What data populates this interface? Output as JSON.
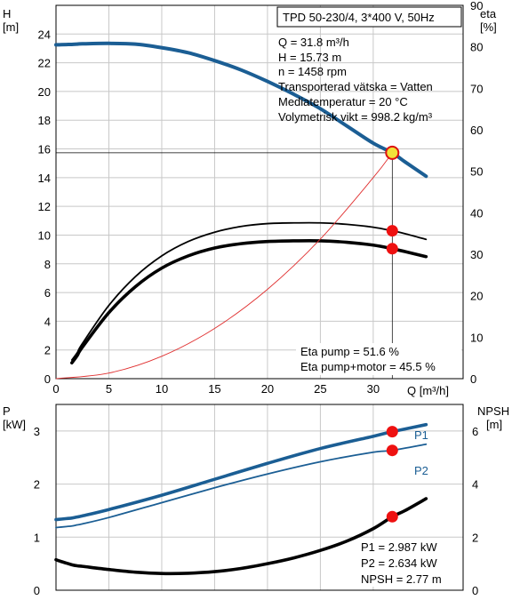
{
  "chart_data": [
    {
      "type": "line",
      "title": "TPD 50-230/4, 3*400 V, 50Hz",
      "xlabel": "Q [m³/h]",
      "ylabel_left": [
        "H",
        "[m]"
      ],
      "ylabel_right": [
        "eta",
        "[%]"
      ],
      "xlim": [
        0,
        38.5
      ],
      "ylim_left": [
        0,
        26
      ],
      "ylim_right": [
        0,
        90
      ],
      "x_ticks": [
        "0",
        "5",
        "10",
        "15",
        "20",
        "25",
        "30"
      ],
      "y_ticks_left": [
        "0",
        "2",
        "4",
        "6",
        "8",
        "10",
        "12",
        "14",
        "16",
        "18",
        "20",
        "22",
        "24"
      ],
      "y_ticks_right": [
        "0",
        "10",
        "20",
        "30",
        "40",
        "50",
        "60",
        "70",
        "80",
        "90"
      ],
      "grid": true,
      "info_lines": [
        "Q = 31.8 m³/h",
        "H = 15.73 m",
        "n = 1458 rpm",
        "Transporterad vätska = Vatten",
        "Mediatemperatur = 20 °C",
        "Volymetrisk vikt = 998.2 kg/m³"
      ],
      "eta_labels": [
        "Eta pump = 51.6 %",
        "Eta pump+motor = 45.5 %"
      ],
      "colors": {
        "head": "#1b5e94",
        "eta": "#000000",
        "system": "#e03030",
        "marker": "#ee1111",
        "op_marker": "#f2e23a"
      },
      "series": [
        {
          "axis": "left",
          "color": "head",
          "thick": true,
          "x": [
            0,
            0.5,
            1,
            1.5,
            2,
            2.5,
            5,
            7.5,
            10,
            12.5,
            15,
            17.5,
            20,
            22.5,
            25,
            27.5,
            30,
            31.8,
            33,
            35
          ],
          "y": [
            23.25,
            23.26,
            23.27,
            23.28,
            23.3,
            23.32,
            23.35,
            23.3,
            23.05,
            22.7,
            22.15,
            21.5,
            20.7,
            19.8,
            18.8,
            17.6,
            16.4,
            15.73,
            15.1,
            14.1
          ]
        },
        {
          "axis": "left",
          "color": "eta",
          "thick": false,
          "x": [
            1.5,
            2,
            2.5,
            5,
            7.5,
            10,
            12.5,
            15,
            17.5,
            20,
            22.5,
            25,
            27.5,
            30,
            31.8,
            33,
            35
          ],
          "y": [
            1.3,
            1.8,
            2.45,
            5.1,
            7.1,
            8.55,
            9.55,
            10.2,
            10.6,
            10.8,
            10.85,
            10.85,
            10.75,
            10.55,
            10.3,
            10.1,
            9.7
          ]
        },
        {
          "axis": "left",
          "color": "eta",
          "thick": true,
          "x": [
            1.5,
            2,
            2.5,
            5,
            7.5,
            10,
            12.5,
            15,
            17.5,
            20,
            22.5,
            25,
            27.5,
            30,
            31.8,
            33,
            35
          ],
          "y": [
            1.1,
            1.6,
            2.2,
            4.6,
            6.4,
            7.7,
            8.55,
            9.1,
            9.4,
            9.55,
            9.6,
            9.6,
            9.5,
            9.3,
            9.05,
            8.85,
            8.5
          ]
        },
        {
          "axis": "left",
          "color": "system",
          "thin": true,
          "x": [
            0,
            5,
            10,
            15,
            20,
            25,
            30,
            31.8
          ],
          "y": [
            0,
            0.39,
            1.56,
            3.5,
            6.22,
            9.72,
            14.0,
            15.73
          ]
        }
      ],
      "markers": [
        {
          "x": 31.8,
          "y": 15.73,
          "style": "operating"
        },
        {
          "x": 31.8,
          "y": 10.3,
          "style": "point"
        },
        {
          "x": 31.8,
          "y": 9.05,
          "style": "point"
        }
      ]
    },
    {
      "type": "line",
      "xlim": [
        0,
        38.5
      ],
      "ylabel_left": [
        "P",
        "[kW]"
      ],
      "ylabel_right": [
        "NPSH",
        "[m]"
      ],
      "ylim_left": [
        0,
        3.5
      ],
      "ylim_right": [
        0,
        7
      ],
      "y_ticks_left": [
        "0",
        "1",
        "2",
        "3"
      ],
      "y_ticks_right": [
        "0",
        "2",
        "4",
        "6"
      ],
      "grid": true,
      "values_text": [
        "P1 = 2.987 kW",
        "P2 = 2.634 kW",
        "NPSH = 2.77 m"
      ],
      "series": [
        {
          "name": "P1",
          "axis": "left",
          "color": "head",
          "thick": true,
          "x": [
            0,
            0.5,
            1,
            1.5,
            2,
            2.5,
            5,
            10,
            15,
            20,
            25,
            30,
            31.8,
            35
          ],
          "y": [
            1.33,
            1.34,
            1.35,
            1.36,
            1.38,
            1.4,
            1.52,
            1.79,
            2.09,
            2.39,
            2.67,
            2.9,
            2.987,
            3.12
          ]
        },
        {
          "name": "P2",
          "axis": "left",
          "color": "head",
          "thick": false,
          "x": [
            0,
            0.5,
            1,
            1.5,
            2,
            2.5,
            5,
            10,
            15,
            20,
            25,
            30,
            31.8,
            35
          ],
          "y": [
            1.18,
            1.19,
            1.2,
            1.21,
            1.23,
            1.25,
            1.37,
            1.65,
            1.93,
            2.19,
            2.42,
            2.6,
            2.634,
            2.75
          ]
        },
        {
          "name": "NPSH",
          "axis": "right",
          "color": "eta",
          "thick": true,
          "x": [
            0,
            0.5,
            1,
            1.5,
            2,
            2.5,
            5,
            7.5,
            10,
            12.5,
            15,
            17.5,
            20,
            22.5,
            25,
            27.5,
            30,
            31.8,
            33,
            35
          ],
          "y": [
            1.15,
            1.08,
            1.02,
            0.96,
            0.92,
            0.9,
            0.78,
            0.68,
            0.63,
            0.64,
            0.7,
            0.82,
            1.0,
            1.22,
            1.5,
            1.85,
            2.32,
            2.77,
            3.0,
            3.45
          ]
        }
      ],
      "markers": [
        {
          "x": 31.8,
          "y": 2.987,
          "axis": "left",
          "style": "point"
        },
        {
          "x": 31.8,
          "y": 2.634,
          "axis": "left",
          "style": "point"
        },
        {
          "x": 31.8,
          "y": 2.77,
          "axis": "right",
          "style": "point"
        }
      ]
    }
  ]
}
